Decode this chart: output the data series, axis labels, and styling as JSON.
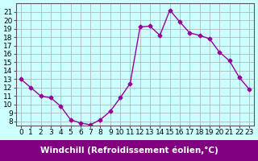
{
  "x": [
    0,
    1,
    2,
    3,
    4,
    5,
    6,
    7,
    8,
    9,
    10,
    11,
    12,
    13,
    14,
    15,
    16,
    17,
    18,
    19,
    20,
    21,
    22,
    23
  ],
  "y": [
    13.0,
    12.0,
    11.0,
    10.8,
    9.8,
    8.2,
    7.8,
    7.6,
    8.2,
    9.2,
    10.8,
    12.5,
    19.2,
    19.3,
    18.2,
    21.2,
    19.8,
    18.5,
    18.2,
    17.8,
    16.2,
    15.2,
    13.2,
    11.8
  ],
  "line_color": "#990099",
  "marker": "D",
  "marker_size": 2.5,
  "bg_color": "#ccffff",
  "grid_color": "#aaaaaa",
  "xlabel": "Windchill (Refroidissement éolien,°C)",
  "xlabel_fontsize": 7.5,
  "ytick_min": 8,
  "ytick_max": 21,
  "xtick_labels": [
    "0",
    "1",
    "2",
    "3",
    "4",
    "5",
    "6",
    "7",
    "8",
    "9",
    "10",
    "11",
    "12",
    "13",
    "14",
    "15",
    "16",
    "17",
    "18",
    "19",
    "20",
    "21",
    "22",
    "23"
  ],
  "ylim": [
    7.5,
    22
  ],
  "xlim": [
    -0.5,
    23.5
  ],
  "tick_fontsize": 6.5,
  "label_bg": "#800080",
  "label_text_color": "#ffffff",
  "spine_color": "#555555"
}
